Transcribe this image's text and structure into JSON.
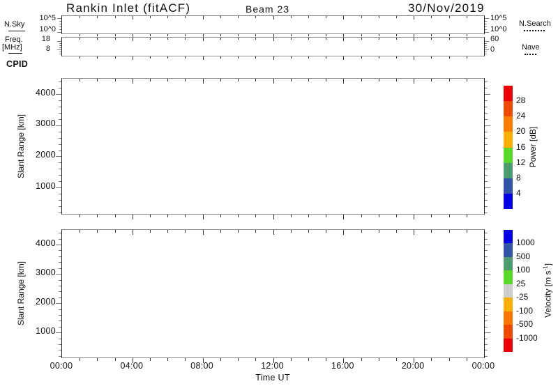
{
  "header": {
    "title": "Rankin Inlet (fitACF)",
    "beam": "Beam 23",
    "date": "30/Nov/2019"
  },
  "noise_panel": {
    "label": "N.Sky",
    "left_ticks": [
      "10^5",
      "10^0"
    ],
    "right_ticks": [
      "10^5",
      "10^0"
    ],
    "right_label": "N.Search"
  },
  "freq_panel": {
    "label_line1": "Freq.",
    "label_line2": "[MHz]",
    "left_ticks": [
      "18",
      "8"
    ],
    "right_ticks": [
      "60",
      "0"
    ],
    "right_label": "Nave"
  },
  "cpid_label": "CPID",
  "power_panel": {
    "ylabel": "Slant Range [km]",
    "yticks_top_to_bottom": [
      "4000",
      "3000",
      "2000",
      "1000"
    ]
  },
  "velocity_panel": {
    "ylabel": "Slant Range [km]",
    "yticks_top_to_bottom": [
      "4000",
      "3000",
      "2000",
      "1000"
    ]
  },
  "xaxis": {
    "labels": [
      "00:00",
      "04:00",
      "08:00",
      "12:00",
      "16:00",
      "20:00",
      "00:00"
    ],
    "hours": [
      0,
      4,
      8,
      12,
      16,
      20,
      24
    ],
    "title": "Time UT"
  },
  "power_colorbar": {
    "label": "Power [dB]",
    "tick_labels_top_to_bottom": [
      "28",
      "24",
      "20",
      "16",
      "12",
      "8",
      "4"
    ],
    "colors_top_to_bottom": [
      "#ee0000",
      "#f04a00",
      "#f87d00",
      "#fcaf01",
      "#58d928",
      "#4e9b70",
      "#3154a8",
      "#0100e8"
    ]
  },
  "velocity_colorbar": {
    "label_pre": "Velocity [m s",
    "label_sup": "-1",
    "label_post": "]",
    "tick_labels_top_to_bottom": [
      "1000",
      "500",
      "100",
      "25",
      "-25",
      "-100",
      "-500",
      "-1000"
    ],
    "colors_top_to_bottom": [
      "#0100e8",
      "#3154a8",
      "#4e9b70",
      "#58d928",
      "#cdcdcd",
      "#fcaf01",
      "#f87700",
      "#f04a00",
      "#ee0000"
    ]
  },
  "chart_data": [
    {
      "type": "line",
      "title": "Sky noise / search noise vs time",
      "x": [],
      "series": [
        {
          "name": "N.Sky",
          "style": "solid",
          "values": []
        },
        {
          "name": "N.Search",
          "style": "dotted",
          "values": []
        }
      ],
      "ylabel": "N.Sky",
      "y_scale": "log",
      "ylim_ticks": [
        "10^0",
        "10^5"
      ],
      "x_range_hours": [
        0,
        24
      ],
      "note": "panel is blank - no data drawn"
    },
    {
      "type": "line",
      "title": "Frequency / Nave vs time",
      "x": [],
      "series": [
        {
          "name": "Freq [MHz]",
          "style": "solid",
          "values": []
        },
        {
          "name": "Nave",
          "style": "dotted",
          "values": []
        }
      ],
      "left_y_ticks": [
        8,
        18
      ],
      "right_y_ticks": [
        0,
        60
      ],
      "x_range_hours": [
        0,
        24
      ],
      "note": "panel is blank - no data drawn"
    },
    {
      "type": "heatmap",
      "title": "Power range-time plot",
      "xlabel": "Time UT",
      "x_ticks": [
        "00:00",
        "04:00",
        "08:00",
        "12:00",
        "16:00",
        "20:00",
        "00:00"
      ],
      "ylabel": "Slant Range [km]",
      "y_ticks": [
        1000,
        2000,
        3000,
        4000
      ],
      "ylim": [
        150,
        4500
      ],
      "colorbar": {
        "label": "Power [dB]",
        "boundaries": [
          4,
          8,
          12,
          16,
          20,
          24,
          28
        ],
        "colors_bottom_to_top": [
          "#0100e8",
          "#3154a8",
          "#4e9b70",
          "#58d928",
          "#fcaf01",
          "#f87d00",
          "#f04a00",
          "#ee0000"
        ]
      },
      "values": [],
      "note": "panel is blank - no echoes plotted"
    },
    {
      "type": "heatmap",
      "title": "Velocity range-time plot",
      "xlabel": "Time UT",
      "x_ticks": [
        "00:00",
        "04:00",
        "08:00",
        "12:00",
        "16:00",
        "20:00",
        "00:00"
      ],
      "ylabel": "Slant Range [km]",
      "y_ticks": [
        1000,
        2000,
        3000,
        4000
      ],
      "ylim": [
        150,
        4500
      ],
      "colorbar": {
        "label": "Velocity [m s^-1]",
        "boundaries": [
          -1000,
          -500,
          -100,
          -25,
          25,
          100,
          500,
          1000
        ],
        "colors_bottom_to_top": [
          "#ee0000",
          "#f04a00",
          "#f87700",
          "#fcaf01",
          "#cdcdcd",
          "#58d928",
          "#4e9b70",
          "#3154a8",
          "#0100e8"
        ]
      },
      "values": [],
      "note": "panel is blank - no echoes plotted"
    }
  ]
}
